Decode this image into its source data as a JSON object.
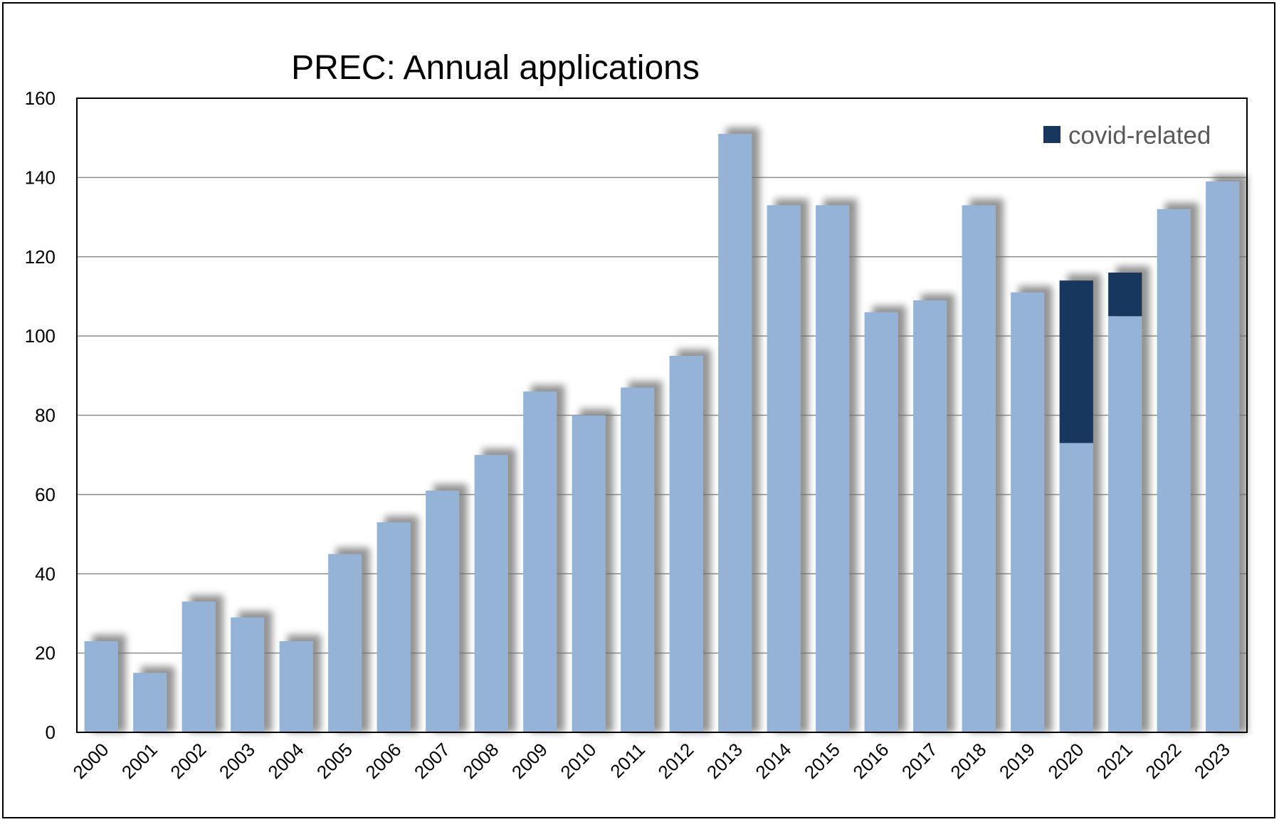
{
  "chart_data": {
    "type": "bar",
    "title": "PREC: Annual applications",
    "xlabel": "",
    "ylabel": "",
    "ylim": [
      0,
      160
    ],
    "yticks": [
      0,
      20,
      40,
      60,
      80,
      100,
      120,
      140,
      160
    ],
    "grid": true,
    "legend": "top-right",
    "categories": [
      "2000",
      "2001",
      "2002",
      "2003",
      "2004",
      "2005",
      "2006",
      "2007",
      "2008",
      "2009",
      "2010",
      "2011",
      "2012",
      "2013",
      "2014",
      "2015",
      "2016",
      "2017",
      "2018",
      "2019",
      "2020",
      "2021",
      "2022",
      "2023"
    ],
    "series": [
      {
        "key": "base",
        "color": "#95b3d7",
        "values": [
          23,
          15,
          33,
          29,
          23,
          45,
          53,
          61,
          70,
          86,
          80,
          87,
          95,
          151,
          133,
          133,
          106,
          109,
          133,
          111,
          73,
          105,
          132,
          139
        ]
      },
      {
        "key": "covid",
        "name": "covid-related",
        "color": "#17375e",
        "values": [
          0,
          0,
          0,
          0,
          0,
          0,
          0,
          0,
          0,
          0,
          0,
          0,
          0,
          0,
          0,
          0,
          0,
          0,
          0,
          0,
          41,
          11,
          0,
          0
        ]
      }
    ]
  }
}
